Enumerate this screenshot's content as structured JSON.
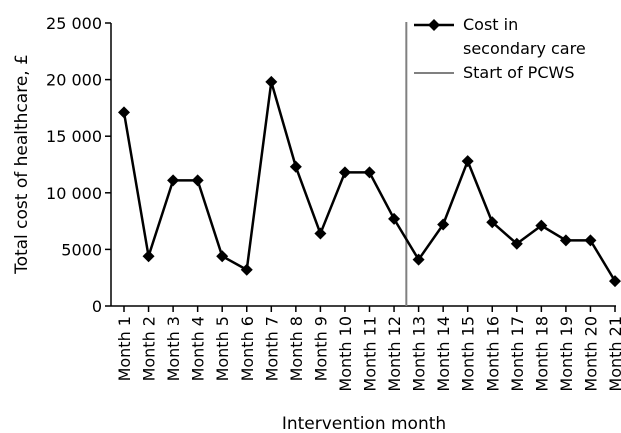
{
  "chart_data": {
    "type": "line",
    "title": "",
    "xlabel": "Intervention month",
    "ylabel": "Total cost of healthcare, £",
    "ylim": [
      0,
      25000
    ],
    "y_ticks": [
      0,
      5000,
      10000,
      15000,
      20000,
      25000
    ],
    "y_tick_labels": [
      "0",
      "5000",
      "10 000",
      "15 000",
      "20 000",
      "25 000"
    ],
    "categories": [
      "Month 1",
      "Month 2",
      "Month 3",
      "Month 4",
      "Month 5",
      "Month 6",
      "Month 7",
      "Month 8",
      "Month 9",
      "Month 10",
      "Month 11",
      "Month 12",
      "Month 13",
      "Month 14",
      "Month 15",
      "Month 16",
      "Month 17",
      "Month 18",
      "Month 19",
      "Month 20",
      "Month 21"
    ],
    "series": [
      {
        "name": "Cost in secondary care",
        "marker": "diamond",
        "color": "#000000",
        "values": [
          17100,
          4400,
          11100,
          11100,
          4400,
          3200,
          19800,
          12300,
          6400,
          11800,
          11800,
          7700,
          4100,
          7200,
          12800,
          7400,
          5500,
          7100,
          5800,
          5800,
          2200
        ]
      }
    ],
    "reference_line": {
      "name": "Start of PCWS",
      "position": "between Month 12 and Month 13",
      "color": "#808080"
    },
    "legend": {
      "placement": "top-right",
      "entries": [
        {
          "lines": [
            "Cost in",
            "secondary care"
          ]
        },
        {
          "lines": [
            "Start of PCWS"
          ]
        }
      ]
    },
    "grid": false
  }
}
